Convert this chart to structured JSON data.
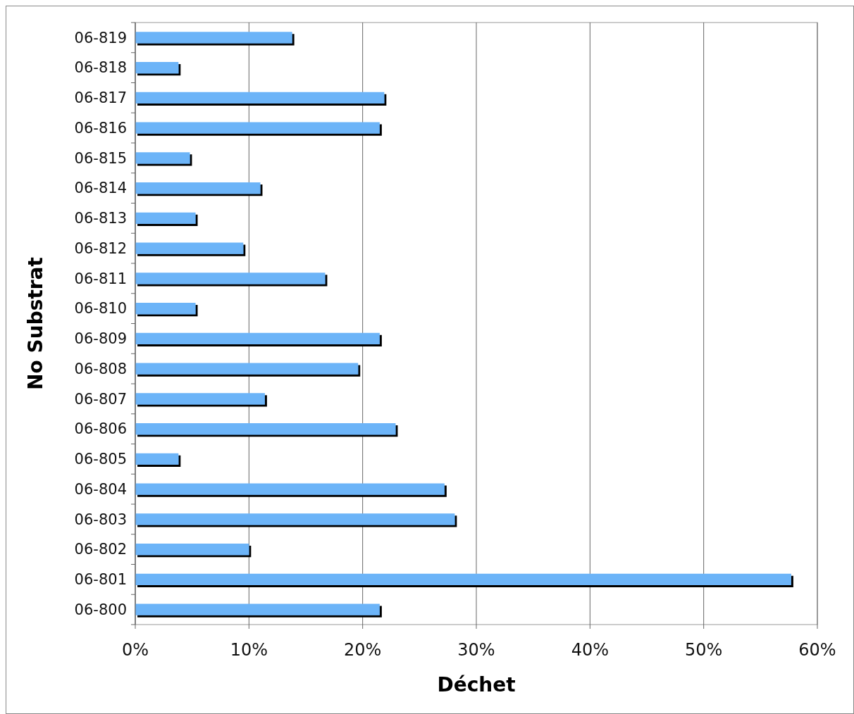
{
  "chart_data": {
    "type": "bar",
    "orientation": "horizontal",
    "xlabel": "Déchet",
    "ylabel": "No Substrat",
    "categories": [
      "06-819",
      "06-818",
      "06-817",
      "06-816",
      "06-815",
      "06-814",
      "06-813",
      "06-812",
      "06-811",
      "06-810",
      "06-809",
      "06-808",
      "06-807",
      "06-806",
      "06-805",
      "06-804",
      "06-803",
      "06-802",
      "06-801",
      "06-800"
    ],
    "values": [
      13.8,
      3.8,
      21.9,
      21.5,
      4.8,
      11.0,
      5.3,
      9.5,
      16.7,
      5.3,
      21.5,
      19.6,
      11.4,
      22.9,
      3.8,
      27.2,
      28.1,
      10.0,
      57.7,
      21.5
    ],
    "color": "#6cb4f8",
    "xlim": [
      0,
      60
    ],
    "xticks": [
      {
        "value": 0,
        "label": "0%"
      },
      {
        "value": 10,
        "label": "10%"
      },
      {
        "value": 20,
        "label": "20%"
      },
      {
        "value": 30,
        "label": "30%"
      },
      {
        "value": 40,
        "label": "40%"
      },
      {
        "value": 50,
        "label": "50%"
      },
      {
        "value": 60,
        "label": "60%"
      }
    ],
    "grid": "x"
  }
}
